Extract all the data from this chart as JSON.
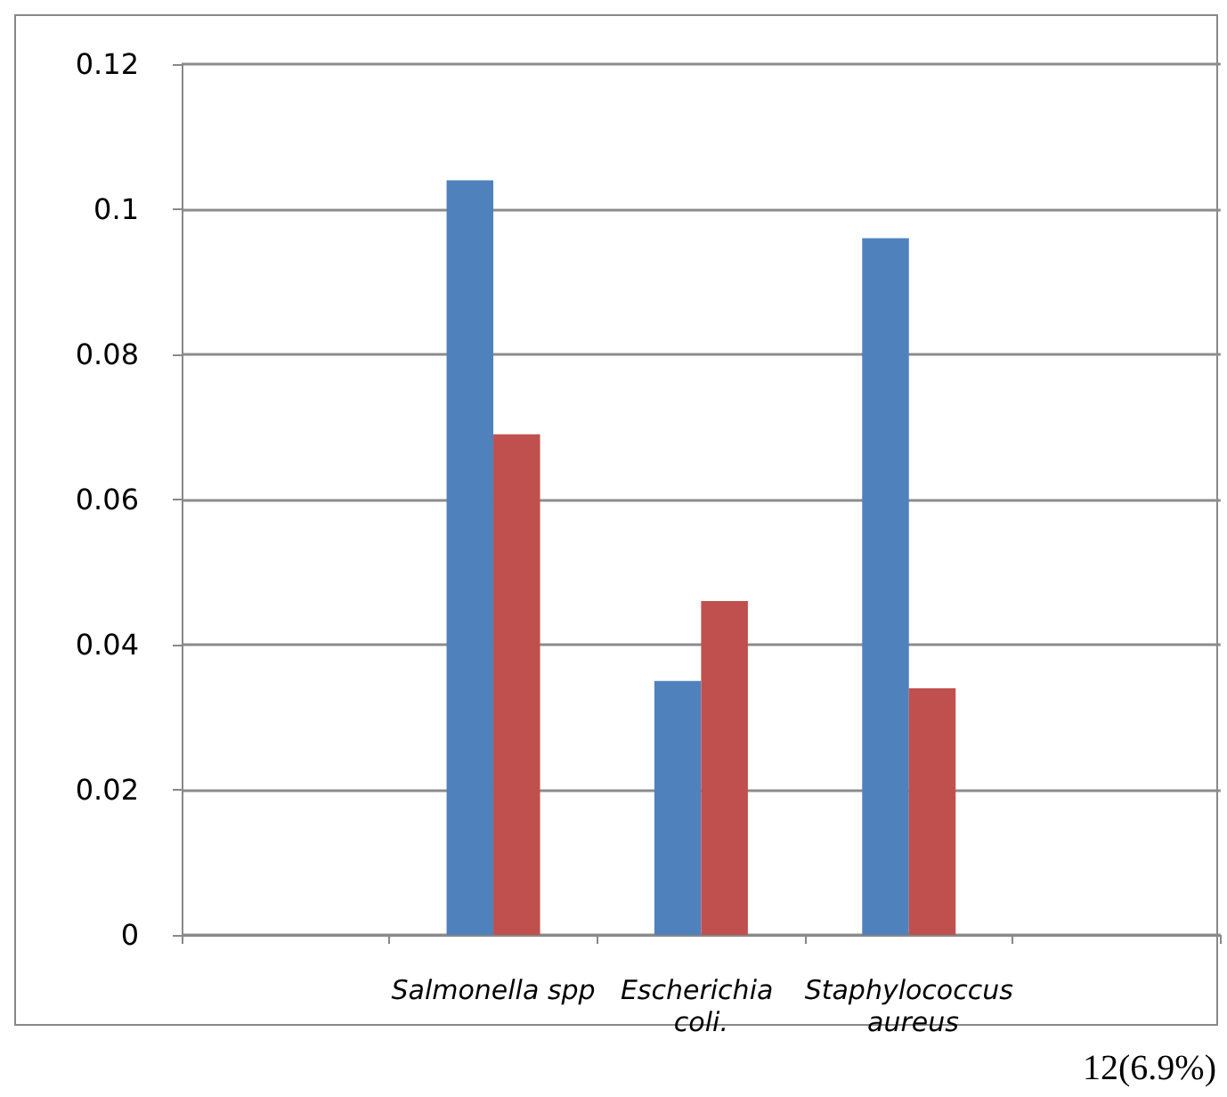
{
  "chart_data": {
    "type": "bar",
    "categories": [
      null,
      "Salmonella spp",
      "Escherichia coli.",
      "Staphylococcus aureus",
      null
    ],
    "series": [
      {
        "color": "#4f81bd",
        "values": [
          null,
          0.104,
          0.035,
          0.096,
          null
        ]
      },
      {
        "color": "#c0504d",
        "values": [
          null,
          0.069,
          0.046,
          0.034,
          null
        ]
      }
    ],
    "ylim": [
      0,
      0.12
    ],
    "yticks": [
      0,
      0.02,
      0.04,
      0.06,
      0.08,
      0.1,
      0.12
    ],
    "grid": "y",
    "annotations": [
      "12(6.9%)"
    ]
  }
}
